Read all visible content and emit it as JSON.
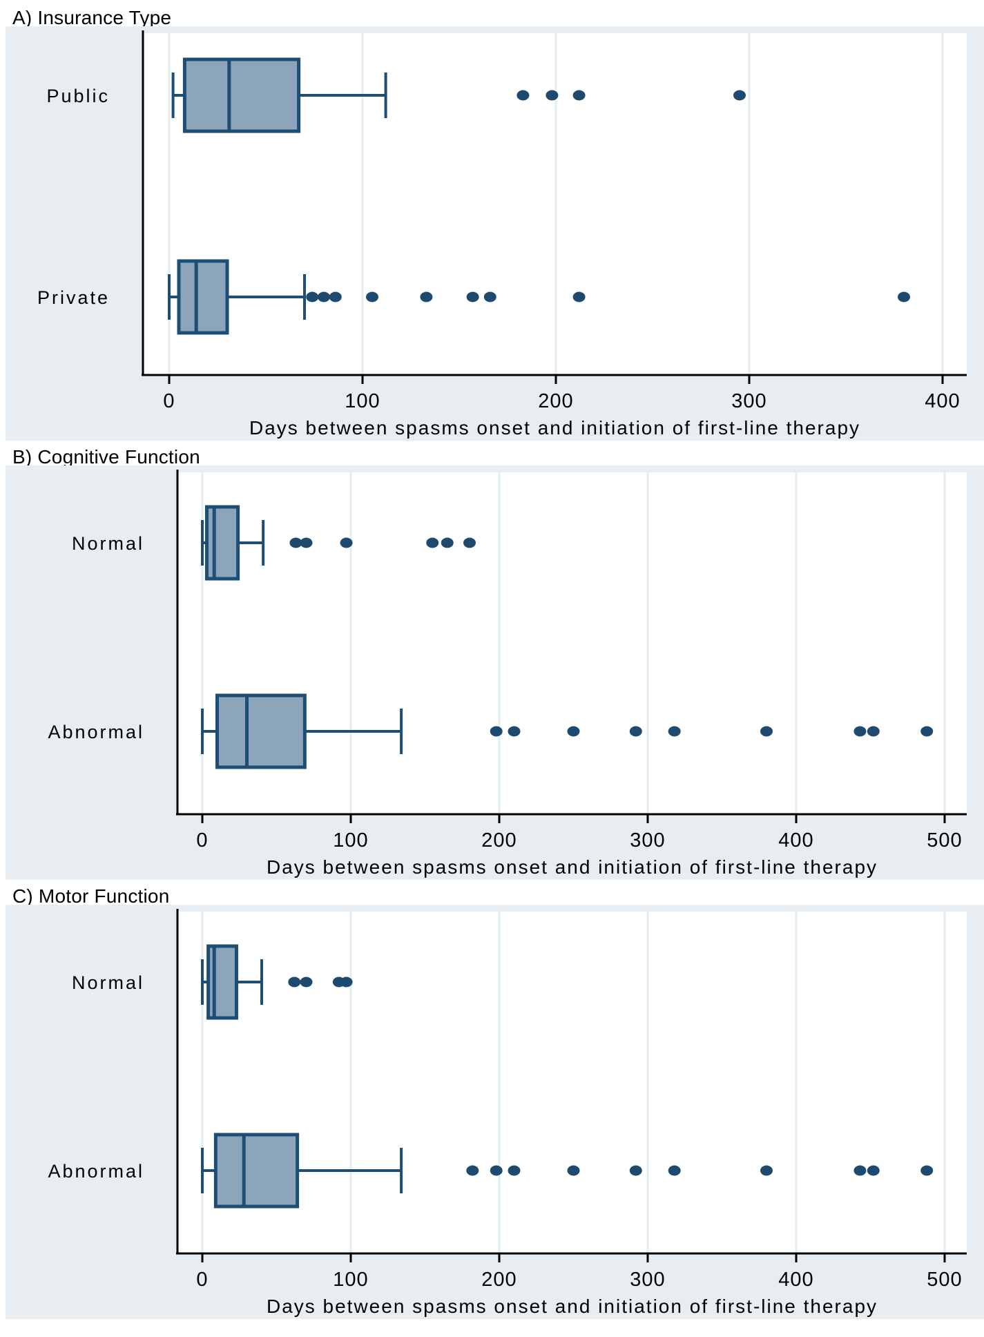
{
  "colors": {
    "panel_background": "#e8edf2",
    "plot_background": "#ffffff",
    "gridline": "#e3eef0",
    "axis_line": "#000000",
    "box_fill": "#8da5ba",
    "box_stroke": "#1f4e74",
    "whisker": "#1f4e74",
    "outlier_dot": "#1d4a6e",
    "text": "#000000"
  },
  "chart_data": [
    {
      "type": "boxplot",
      "orientation": "horizontal",
      "title": "A) Insurance Type",
      "xlabel": "Days between spasms onset and initiation of first-line therapy",
      "xlim": [
        0,
        400
      ],
      "xticks": [
        0,
        100,
        200,
        300,
        400
      ],
      "grid": true,
      "groups": [
        {
          "label": "Public",
          "whisker_low": 2,
          "q1": 8,
          "median": 31,
          "q3": 67,
          "whisker_high": 112,
          "outliers": [
            183,
            198,
            212,
            295
          ]
        },
        {
          "label": "Private",
          "whisker_low": 0,
          "q1": 5,
          "median": 14,
          "q3": 30,
          "whisker_high": 70,
          "outliers": [
            74,
            80,
            86,
            105,
            133,
            157,
            166,
            212,
            380
          ]
        }
      ]
    },
    {
      "type": "boxplot",
      "orientation": "horizontal",
      "title": "B) Cognitive Function",
      "xlabel": "Days between spasms onset and initiation of first-line therapy",
      "xlim": [
        0,
        500
      ],
      "xticks": [
        0,
        100,
        200,
        300,
        400,
        500
      ],
      "grid": true,
      "groups": [
        {
          "label": "Normal",
          "whisker_low": 0,
          "q1": 3,
          "median": 8,
          "q3": 24,
          "whisker_high": 41,
          "outliers": [
            63,
            70,
            97,
            155,
            165,
            180
          ]
        },
        {
          "label": "Abnormal",
          "whisker_low": 0,
          "q1": 10,
          "median": 30,
          "q3": 69,
          "whisker_high": 134,
          "outliers": [
            198,
            210,
            250,
            292,
            318,
            380,
            443,
            452,
            488
          ]
        }
      ]
    },
    {
      "type": "boxplot",
      "orientation": "horizontal",
      "title": "C) Motor Function",
      "xlabel": "Days between spasms onset and initiation of first-line therapy",
      "xlim": [
        0,
        500
      ],
      "xticks": [
        0,
        100,
        200,
        300,
        400,
        500
      ],
      "grid": true,
      "groups": [
        {
          "label": "Normal",
          "whisker_low": 0,
          "q1": 4,
          "median": 8,
          "q3": 23,
          "whisker_high": 40,
          "outliers": [
            62,
            70,
            92,
            97
          ]
        },
        {
          "label": "Abnormal",
          "whisker_low": 0,
          "q1": 9,
          "median": 28,
          "q3": 64,
          "whisker_high": 134,
          "outliers": [
            182,
            198,
            210,
            250,
            292,
            318,
            380,
            443,
            452,
            488
          ]
        }
      ]
    }
  ]
}
